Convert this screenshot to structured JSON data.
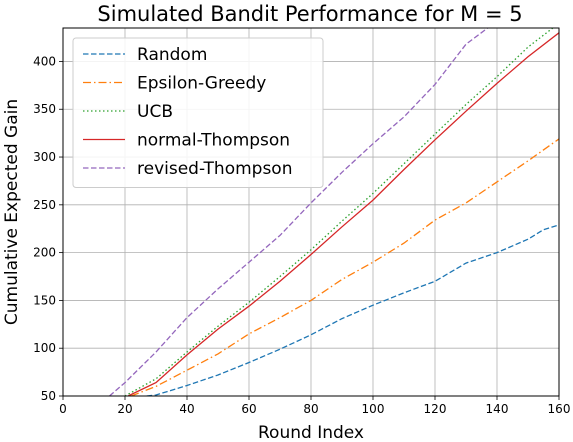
{
  "chart_data": {
    "type": "line",
    "title": "Simulated Bandit Performance for M = 5",
    "xlabel": "Round Index",
    "ylabel": "Cumulative Expected Gain",
    "xlim": [
      0,
      160
    ],
    "ylim": [
      50,
      435
    ],
    "xticks": [
      0,
      20,
      40,
      60,
      80,
      100,
      120,
      140,
      160
    ],
    "yticks": [
      50,
      100,
      150,
      200,
      250,
      300,
      350,
      400
    ],
    "grid": true,
    "legend_position": "upper-left",
    "series": [
      {
        "name": "Random",
        "color": "#1f77b4",
        "dash": "dashed",
        "x": [
          27,
          30,
          40,
          50,
          60,
          70,
          80,
          90,
          100,
          110,
          120,
          130,
          140,
          150,
          155,
          160
        ],
        "y": [
          50,
          51,
          61,
          72,
          85,
          99,
          114,
          131,
          145,
          158,
          170,
          189,
          200,
          214,
          224,
          229
        ]
      },
      {
        "name": "Epsilon-Greedy",
        "color": "#ff7f0e",
        "dash": "dashdot",
        "x": [
          22,
          30,
          40,
          50,
          60,
          70,
          80,
          90,
          100,
          110,
          120,
          130,
          140,
          150,
          160
        ],
        "y": [
          50,
          60,
          77,
          94,
          115,
          132,
          150,
          172,
          190,
          210,
          234,
          252,
          274,
          296,
          319
        ]
      },
      {
        "name": "UCB",
        "color": "#2ca02c",
        "dash": "dotted",
        "x": [
          20,
          30,
          40,
          50,
          60,
          70,
          80,
          90,
          100,
          110,
          120,
          130,
          140,
          150,
          158
        ],
        "y": [
          50,
          68,
          96,
          123,
          148,
          175,
          203,
          233,
          262,
          293,
          324,
          355,
          384,
          415,
          435
        ]
      },
      {
        "name": "normal-Thompson",
        "color": "#d62728",
        "dash": "solid",
        "x": [
          21,
          30,
          40,
          50,
          60,
          70,
          80,
          90,
          100,
          110,
          120,
          130,
          140,
          150,
          160
        ],
        "y": [
          50,
          64,
          93,
          120,
          144,
          170,
          198,
          227,
          255,
          287,
          318,
          348,
          377,
          405,
          430
        ]
      },
      {
        "name": "revised-Thompson",
        "color": "#9467bd",
        "dash": "dashed",
        "x": [
          15,
          20,
          30,
          40,
          50,
          60,
          70,
          80,
          90,
          100,
          110,
          120,
          130,
          137
        ],
        "y": [
          50,
          64,
          96,
          132,
          162,
          190,
          218,
          252,
          284,
          314,
          342,
          376,
          418,
          435
        ]
      }
    ]
  }
}
